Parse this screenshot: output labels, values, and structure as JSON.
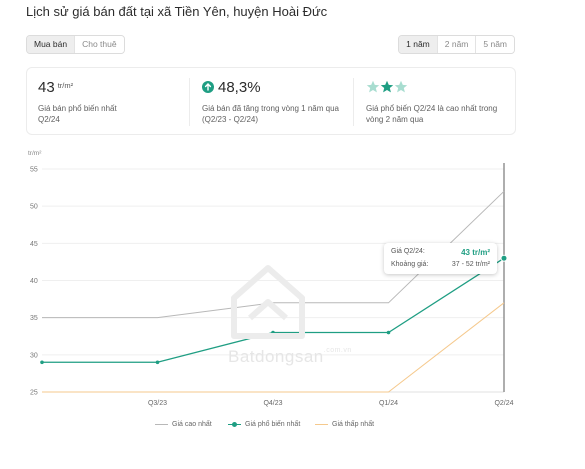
{
  "header": {
    "title": "Lịch sử giá bán đất tại xã Tiền Yên, huyện Hoài Đức"
  },
  "listing_type": {
    "options": [
      "Mua bán",
      "Cho thuê"
    ],
    "selected": "Mua bán"
  },
  "time_range": {
    "options": [
      "1 năm",
      "2 năm",
      "5 năm"
    ],
    "selected": "1 năm"
  },
  "summary": {
    "price": {
      "value": "43",
      "unit": "tr/m²",
      "line1": "Giá bán phổ biến nhất",
      "line2": "Q2/24"
    },
    "growth": {
      "value": "48,3%",
      "icon": "arrow-up-icon",
      "line1": "Giá bán đã tăng trong vòng 1 năm qua",
      "line2": "(Q2/23 - Q2/24)"
    },
    "rating": {
      "stars_filled": 2,
      "icon": "star-icon",
      "line1": "Giá phổ biến Q2/24 là cao nhất trong",
      "line2": "vòng 2 năm qua"
    }
  },
  "tooltip": {
    "label_price": "Giá Q2/24:",
    "value_price": "43 tr/m²",
    "label_range": "Khoảng giá:",
    "value_range": "37 - 52 tr/m²"
  },
  "watermark": {
    "text": "Batdongsan",
    "sub": ".com.vn"
  },
  "colors": {
    "high": "#b8b8b8",
    "common": "#1f9e83",
    "low": "#f5c98d",
    "star_light": "#a8ddd0",
    "star_dark": "#1f9e83"
  },
  "chart_data": {
    "type": "line",
    "ylabel": "tr/m²",
    "ylim": [
      25,
      55
    ],
    "yticks": [
      25,
      30,
      35,
      40,
      45,
      50,
      55
    ],
    "x": [
      "Q2/23",
      "Q3/23",
      "Q4/23",
      "Q1/24",
      "Q2/24"
    ],
    "xtick_labels": [
      "",
      "Q3/23",
      "Q4/23",
      "Q1/24",
      "Q2/24"
    ],
    "grid": true,
    "legend_position": "bottom",
    "series": [
      {
        "key": "high",
        "name": "Giá cao nhất",
        "values": [
          35,
          35,
          37,
          37,
          52
        ],
        "markers": false
      },
      {
        "key": "common",
        "name": "Giá phổ biến nhất",
        "values": [
          29,
          29,
          33,
          33,
          43
        ],
        "markers": true
      },
      {
        "key": "low",
        "name": "Giá thấp nhất",
        "values": [
          25,
          25,
          25,
          25,
          37
        ],
        "markers": false
      }
    ]
  }
}
